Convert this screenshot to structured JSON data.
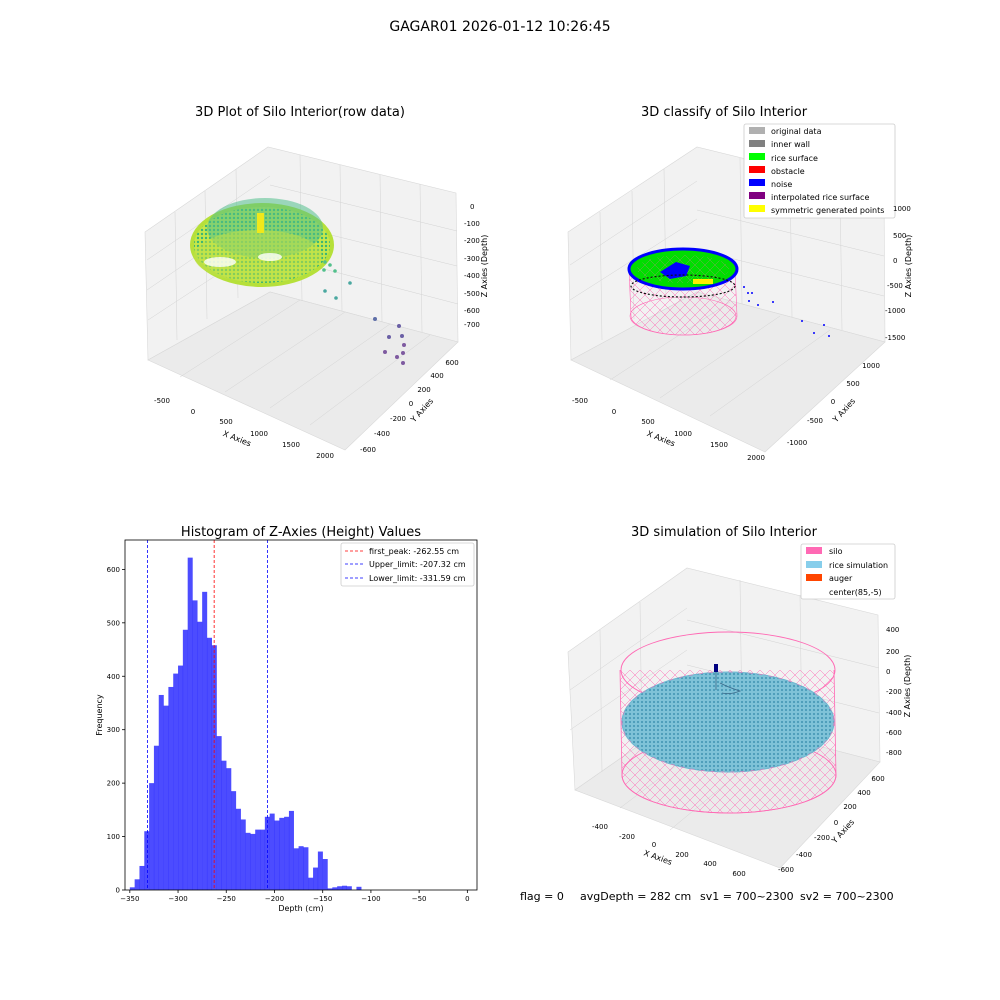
{
  "suptitle": "GAGAR01 2026-01-12 10:26:45",
  "status_text": {
    "flag": "flag = 0",
    "avg": "avgDepth = 282 cm",
    "sv1": "sv1 = 700~2300",
    "sv2": "sv2 = 700~2300"
  },
  "chart_data": [
    {
      "type": "scatter",
      "title": "3D Plot of Silo Interior(row data)",
      "xlabel": "X Axies",
      "ylabel": "Y Axies",
      "zlabel": "Z Axies (Depth)",
      "xticks": [
        "-500",
        "0",
        "500",
        "1000",
        "1500",
        "2000"
      ],
      "yticks": [
        "-600",
        "-400",
        "-200",
        "0",
        "200",
        "400",
        "600"
      ],
      "zticks": [
        "0",
        "-100",
        "-200",
        "-300",
        "-400",
        "-500",
        "-600",
        "-700"
      ],
      "colormap": "viridis",
      "outlier_points": [
        {
          "x": 1720,
          "y": -480,
          "z": -600
        },
        {
          "x": 1760,
          "y": -520,
          "z": -650
        },
        {
          "x": 1800,
          "y": -560,
          "z": -640
        },
        {
          "x": 1830,
          "y": -520,
          "z": -690
        },
        {
          "x": 1860,
          "y": -580,
          "z": -700
        },
        {
          "x": 1880,
          "y": -610,
          "z": -720
        },
        {
          "x": 1700,
          "y": -400,
          "z": -560
        },
        {
          "x": 1380,
          "y": -120,
          "z": -480
        },
        {
          "x": 1020,
          "y": 120,
          "z": -360
        },
        {
          "x": 900,
          "y": 200,
          "z": -300
        },
        {
          "x": 960,
          "y": 180,
          "z": -330
        }
      ]
    },
    {
      "type": "scatter",
      "title": "3D classify of Silo Interior",
      "xlabel": "X Axies",
      "ylabel": "Y Axies",
      "zlabel": "Z Axies (Depth)",
      "xticks": [
        "-500",
        "0",
        "500",
        "1000",
        "1500",
        "2000"
      ],
      "yticks": [
        "-1000",
        "-500",
        "0",
        "500",
        "1000"
      ],
      "zticks": [
        "1000",
        "500",
        "0",
        "-500",
        "-1000",
        "-1500"
      ],
      "legend": [
        "original data",
        "inner wall",
        "rice surface",
        "obstacle",
        "noise",
        "interpolated rice surface",
        "symmetric generated points"
      ],
      "legend_colors": [
        "#b0b0b0",
        "#808080",
        "#00ff00",
        "#ff0000",
        "#0000ff",
        "#800080",
        "#ffff00"
      ],
      "legend_loc": "upper right"
    },
    {
      "type": "bar",
      "title": "Histogram of Z-Axies (Height) Values",
      "xlabel": "Depth (cm)",
      "ylabel": "Frequency",
      "xlim": [
        -355,
        10
      ],
      "ylim": [
        0,
        655
      ],
      "bin_width": 5,
      "bin_start": -350,
      "values": [
        5,
        20,
        45,
        110,
        200,
        270,
        365,
        345,
        380,
        405,
        420,
        487,
        622,
        542,
        502,
        558,
        472,
        458,
        288,
        242,
        228,
        185,
        152,
        132,
        107,
        105,
        113,
        113,
        137,
        143,
        130,
        135,
        137,
        148,
        78,
        82,
        80,
        23,
        42,
        72,
        58,
        3,
        5,
        7,
        8,
        7,
        0,
        6
      ],
      "bar_color": "#0000ff",
      "xticks": [
        -350,
        -300,
        -250,
        -200,
        -150,
        -100,
        -50,
        0
      ],
      "yticks": [
        0,
        100,
        200,
        300,
        400,
        500,
        600
      ],
      "lines": [
        {
          "label": "first_peak: -262.55 cm",
          "x": -262.55,
          "color": "#ff0000"
        },
        {
          "label": "Upper_limit: -207.32 cm",
          "x": -207.32,
          "color": "#0000ff"
        },
        {
          "label": "Lower_limit: -331.59 cm",
          "x": -331.59,
          "color": "#0000ff"
        }
      ],
      "legend_loc": "upper right"
    },
    {
      "type": "scatter",
      "title": "3D simulation of Silo Interior",
      "xlabel": "X Axies",
      "ylabel": "Y Axies",
      "zlabel": "Z Axies (Depth)",
      "xticks": [
        "-400",
        "-200",
        "0",
        "200",
        "400",
        "600"
      ],
      "yticks": [
        "-600",
        "-400",
        "-200",
        "0",
        "200",
        "400",
        "600"
      ],
      "zticks": [
        "400",
        "200",
        "0",
        "-200",
        "-400",
        "-600",
        "-800"
      ],
      "legend": [
        "silo",
        "rice simulation",
        "auger",
        "center(85,-5)"
      ],
      "legend_colors": [
        "#ff69b4",
        "#87ceeb",
        "#ff4500",
        ""
      ],
      "legend_loc": "upper right"
    }
  ]
}
